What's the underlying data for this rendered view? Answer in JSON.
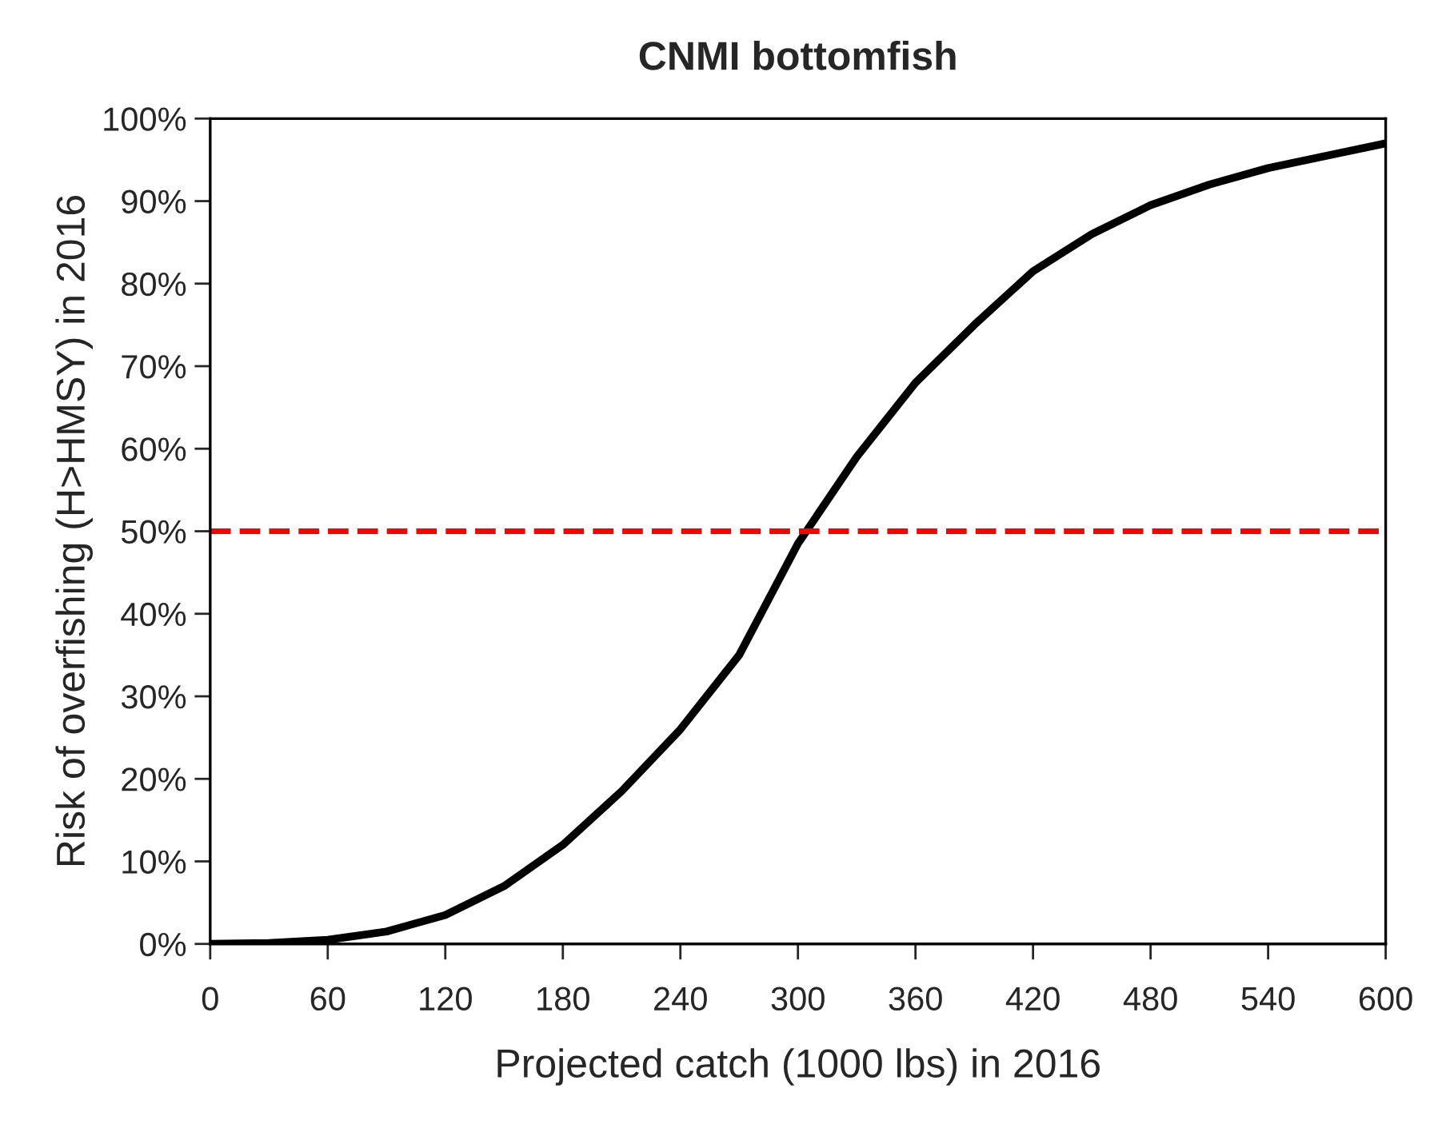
{
  "chart_data": {
    "type": "line",
    "title": "CNMI bottomfish",
    "xlabel": "Projected catch (1000 lbs) in 2016",
    "ylabel": "Risk of overfishing (H>HMSY) in 2016",
    "series": [
      {
        "color": "#000000",
        "x": [
          0,
          30,
          60,
          90,
          120,
          150,
          180,
          210,
          240,
          270,
          300,
          330,
          360,
          390,
          420,
          450,
          480,
          510,
          540,
          570,
          600
        ],
        "values": [
          0,
          0.1,
          0.5,
          1.5,
          3.5,
          7,
          12,
          18.5,
          26,
          35,
          48.5,
          59,
          68,
          75,
          81.5,
          86,
          89.5,
          92,
          94,
          95.5,
          97
        ]
      }
    ],
    "xlim": [
      0,
      600
    ],
    "xticks": [
      0,
      60,
      120,
      180,
      240,
      300,
      360,
      420,
      480,
      540,
      600
    ],
    "ylim": [
      0,
      100
    ],
    "yticks": [
      {
        "value": 0,
        "label": "0%"
      },
      {
        "value": 10,
        "label": "10%"
      },
      {
        "value": 20,
        "label": "20%"
      },
      {
        "value": 30,
        "label": "30%"
      },
      {
        "value": 40,
        "label": "40%"
      },
      {
        "value": 50,
        "label": "50%"
      },
      {
        "value": 60,
        "label": "60%"
      },
      {
        "value": 70,
        "label": "70%"
      },
      {
        "value": 80,
        "label": "80%"
      },
      {
        "value": 90,
        "label": "90%"
      },
      {
        "value": 100,
        "label": "100%"
      }
    ],
    "ref_lines": [
      {
        "axis": "y",
        "value": 50,
        "color": "#ff0000",
        "line_style": "dashed"
      }
    ],
    "grid": false,
    "marker": "none",
    "line_style": "solid"
  }
}
